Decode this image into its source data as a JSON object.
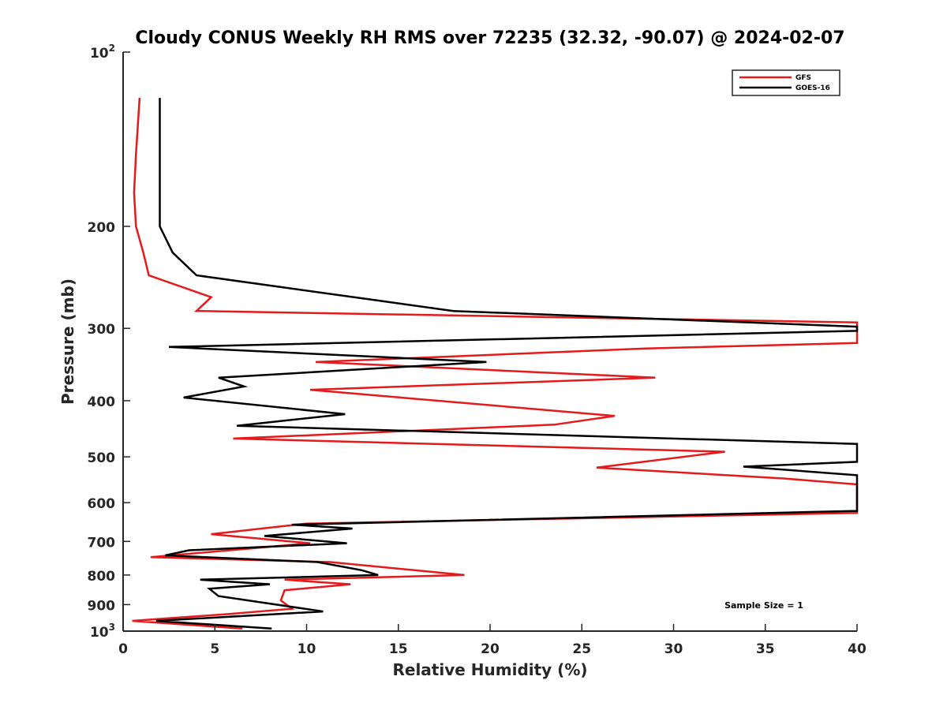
{
  "chart_data": {
    "type": "line",
    "title": "Cloudy CONUS Weekly RH RMS over 72235 (32.32, -90.07) @ 2024-02-07",
    "xlabel": "Relative Humidity (%)",
    "ylabel": "Pressure (mb)",
    "xlim": [
      0,
      40
    ],
    "ylim": [
      100,
      1000
    ],
    "yscale": "log",
    "y_reversed": true,
    "x_ticks": [
      0,
      5,
      10,
      15,
      20,
      25,
      30,
      35,
      40
    ],
    "x_tick_labels": [
      "0",
      "5",
      "10",
      "15",
      "20",
      "25",
      "30",
      "35",
      "40"
    ],
    "y_ticks": [
      100,
      200,
      300,
      400,
      500,
      600,
      700,
      800,
      900,
      1000
    ],
    "y_tick_labels": [
      {
        "base": "10",
        "exp": "2"
      },
      {
        "base": "200",
        "exp": ""
      },
      {
        "base": "300",
        "exp": ""
      },
      {
        "base": "400",
        "exp": ""
      },
      {
        "base": "500",
        "exp": ""
      },
      {
        "base": "600",
        "exp": ""
      },
      {
        "base": "700",
        "exp": ""
      },
      {
        "base": "800",
        "exp": ""
      },
      {
        "base": "900",
        "exp": ""
      },
      {
        "base": "10",
        "exp": "3"
      }
    ],
    "legend_position": "top-right",
    "annotation": "Sample Size = 1",
    "series": [
      {
        "name": "GFS",
        "color": "#e41a1c",
        "points": [
          [
            0.9,
            120
          ],
          [
            0.7,
            150
          ],
          [
            0.6,
            175
          ],
          [
            0.7,
            200
          ],
          [
            1.1,
            222
          ],
          [
            1.4,
            243
          ],
          [
            4.8,
            265
          ],
          [
            4.0,
            280
          ],
          [
            40,
            293
          ],
          [
            40,
            318
          ],
          [
            28.5,
            325
          ],
          [
            10.5,
            343
          ],
          [
            29,
            365
          ],
          [
            10.2,
            383
          ],
          [
            26.8,
            425
          ],
          [
            23.5,
            440
          ],
          [
            6.0,
            465
          ],
          [
            32.8,
            490
          ],
          [
            25.8,
            522
          ],
          [
            36,
            545
          ],
          [
            40,
            558
          ],
          [
            40,
            625
          ],
          [
            10,
            652
          ],
          [
            4.8,
            680
          ],
          [
            10.2,
            705
          ],
          [
            1.5,
            745
          ],
          [
            11.3,
            760
          ],
          [
            18.6,
            800
          ],
          [
            8.8,
            815
          ],
          [
            12.4,
            830
          ],
          [
            8.8,
            850
          ],
          [
            8.6,
            885
          ],
          [
            9.2,
            915
          ],
          [
            5.6,
            935
          ],
          [
            0.5,
            960
          ],
          [
            6.5,
            990
          ]
        ]
      },
      {
        "name": "GOES-16",
        "color": "#000000",
        "points": [
          [
            2.0,
            120
          ],
          [
            2.0,
            150
          ],
          [
            2.0,
            175
          ],
          [
            2.0,
            200
          ],
          [
            2.7,
            222
          ],
          [
            4.0,
            243
          ],
          [
            18.0,
            280
          ],
          [
            40,
            298
          ],
          [
            40,
            303
          ],
          [
            2.5,
            323
          ],
          [
            19.8,
            343
          ],
          [
            5.2,
            365
          ],
          [
            6.6,
            378
          ],
          [
            3.3,
            395
          ],
          [
            12.1,
            422
          ],
          [
            6.2,
            442
          ],
          [
            40,
            475
          ],
          [
            40,
            510
          ],
          [
            33.8,
            520
          ],
          [
            40,
            538
          ],
          [
            40,
            620
          ],
          [
            9.2,
            655
          ],
          [
            12.5,
            665
          ],
          [
            7.7,
            685
          ],
          [
            12.2,
            705
          ],
          [
            3.6,
            725
          ],
          [
            2.3,
            740
          ],
          [
            10.6,
            760
          ],
          [
            13.0,
            785
          ],
          [
            13.9,
            800
          ],
          [
            4.2,
            815
          ],
          [
            8.0,
            830
          ],
          [
            4.7,
            845
          ],
          [
            5.2,
            870
          ],
          [
            10.9,
            925
          ],
          [
            1.8,
            960
          ],
          [
            8.1,
            990
          ]
        ]
      }
    ]
  }
}
